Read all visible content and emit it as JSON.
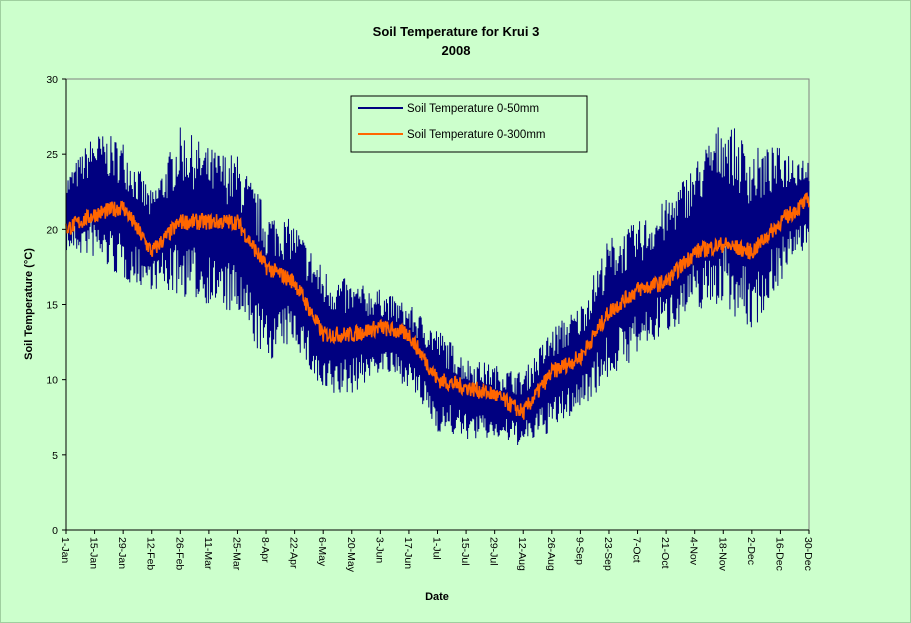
{
  "chart_data": {
    "type": "line",
    "title": "Soil Temperature for Krui 3",
    "subtitle": "2008",
    "xlabel": "Date",
    "ylabel": "Soil Temperature (°C)",
    "ylim": [
      0,
      30
    ],
    "yticks": [
      0,
      5,
      10,
      15,
      20,
      25,
      30
    ],
    "xlim_day_of_year": [
      1,
      365
    ],
    "x_tick_labels": [
      "1-Jan",
      "15-Jan",
      "29-Jan",
      "12-Feb",
      "26-Feb",
      "11-Mar",
      "25-Mar",
      "8-Apr",
      "22-Apr",
      "6-May",
      "20-May",
      "3-Jun",
      "17-Jun",
      "1-Jul",
      "15-Jul",
      "29-Jul",
      "12-Aug",
      "26-Aug",
      "9-Sep",
      "23-Sep",
      "7-Oct",
      "21-Oct",
      "4-Nov",
      "18-Nov",
      "2-Dec",
      "16-Dec",
      "30-Dec"
    ],
    "grid": false,
    "legend_position": "top-center",
    "plot_background": "#ccffcc",
    "series": [
      {
        "name": "Soil Temperature 0-50mm",
        "color": "#000080",
        "x": [
          "1-Jan",
          "15-Jan",
          "29-Jan",
          "12-Feb",
          "26-Feb",
          "11-Mar",
          "25-Mar",
          "8-Apr",
          "22-Apr",
          "6-May",
          "20-May",
          "3-Jun",
          "17-Jun",
          "1-Jul",
          "15-Jul",
          "29-Jul",
          "12-Aug",
          "26-Aug",
          "9-Sep",
          "23-Sep",
          "7-Oct",
          "21-Oct",
          "4-Nov",
          "18-Nov",
          "2-Dec",
          "16-Dec",
          "30-Dec"
        ],
        "daily_min": [
          18.5,
          18.0,
          16.5,
          16.0,
          15.5,
          15.0,
          14.0,
          11.0,
          12.5,
          8.5,
          9.0,
          10.5,
          9.5,
          6.5,
          6.0,
          6.0,
          5.5,
          6.5,
          8.0,
          10.0,
          11.5,
          13.0,
          14.5,
          15.0,
          13.0,
          16.5,
          19.0
        ],
        "daily_max": [
          23.5,
          26.5,
          26.0,
          22.5,
          26.8,
          25.5,
          25.0,
          21.5,
          20.5,
          17.5,
          16.5,
          16.0,
          15.0,
          13.5,
          11.5,
          11.0,
          10.5,
          13.5,
          15.0,
          19.5,
          20.5,
          22.0,
          24.5,
          27.5,
          25.5,
          25.5,
          25.0
        ]
      },
      {
        "name": "Soil Temperature  0-300mm",
        "color": "#ff6600",
        "x": [
          "1-Jan",
          "15-Jan",
          "29-Jan",
          "12-Feb",
          "26-Feb",
          "11-Mar",
          "25-Mar",
          "8-Apr",
          "22-Apr",
          "6-May",
          "20-May",
          "3-Jun",
          "17-Jun",
          "1-Jul",
          "15-Jul",
          "29-Jul",
          "12-Aug",
          "26-Aug",
          "9-Sep",
          "23-Sep",
          "7-Oct",
          "21-Oct",
          "4-Nov",
          "18-Nov",
          "2-Dec",
          "16-Dec",
          "30-Dec"
        ],
        "values": [
          20.0,
          21.0,
          21.5,
          18.5,
          20.5,
          20.5,
          20.5,
          17.5,
          16.5,
          13.0,
          13.0,
          13.5,
          13.0,
          10.0,
          9.5,
          9.0,
          7.8,
          10.5,
          11.5,
          14.5,
          16.0,
          16.5,
          18.5,
          19.0,
          18.5,
          20.5,
          22.0
        ]
      }
    ]
  }
}
